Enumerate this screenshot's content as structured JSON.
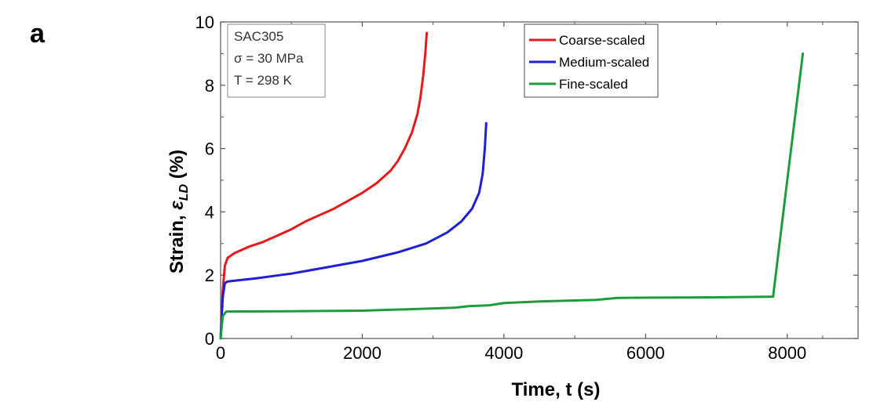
{
  "figure": {
    "panel_label": "a"
  },
  "chart_data": {
    "type": "line",
    "xlabel": "Time, t (s)",
    "ylabel_prefix": "Strain, ",
    "ylabel_symbol": "ε",
    "ylabel_subscript": "LD",
    "ylabel_suffix": " (%)",
    "xlim": [
      0,
      9000
    ],
    "ylim": [
      0,
      10
    ],
    "x_ticks": [
      0,
      2000,
      4000,
      6000,
      8000
    ],
    "y_ticks": [
      0,
      2,
      4,
      6,
      8,
      10
    ],
    "x_tick_labels": [
      "0",
      "2000",
      "4000",
      "6000",
      "8000"
    ],
    "y_tick_labels": [
      "0",
      "2",
      "4",
      "6",
      "8",
      "10"
    ],
    "grid": false,
    "legend_position": "top-right",
    "annotation": [
      "SAC305",
      "σ = 30 MPa",
      "T = 298 K"
    ],
    "series": [
      {
        "name": "Coarse-scaled",
        "color": "#e41a1c",
        "x": [
          0,
          30,
          60,
          100,
          200,
          400,
          600,
          800,
          1000,
          1200,
          1400,
          1600,
          1800,
          2000,
          2200,
          2400,
          2500,
          2600,
          2700,
          2780,
          2820,
          2860,
          2890,
          2910
        ],
        "y": [
          0,
          1.5,
          2.3,
          2.55,
          2.7,
          2.9,
          3.05,
          3.25,
          3.45,
          3.7,
          3.9,
          4.1,
          4.35,
          4.6,
          4.9,
          5.3,
          5.6,
          6.0,
          6.5,
          7.1,
          7.6,
          8.3,
          9.0,
          9.65
        ]
      },
      {
        "name": "Medium-scaled",
        "color": "#1f1fd6",
        "x": [
          0,
          30,
          60,
          100,
          500,
          1000,
          1500,
          2000,
          2500,
          2900,
          3200,
          3400,
          3550,
          3650,
          3700,
          3730,
          3750
        ],
        "y": [
          0,
          1.3,
          1.75,
          1.8,
          1.9,
          2.05,
          2.25,
          2.45,
          2.72,
          3.0,
          3.35,
          3.7,
          4.1,
          4.6,
          5.2,
          6.0,
          6.8
        ]
      },
      {
        "name": "Fine-scaled",
        "color": "#1e9c3c",
        "x": [
          0,
          30,
          80,
          1000,
          2000,
          2600,
          3300,
          3500,
          3800,
          4000,
          4500,
          5000,
          5300,
          5600,
          6000,
          7000,
          7800,
          8000,
          8220
        ],
        "y": [
          0,
          0.7,
          0.85,
          0.86,
          0.88,
          0.92,
          0.97,
          1.02,
          1.05,
          1.12,
          1.17,
          1.2,
          1.22,
          1.28,
          1.29,
          1.3,
          1.32,
          5.0,
          9.0
        ]
      }
    ]
  }
}
